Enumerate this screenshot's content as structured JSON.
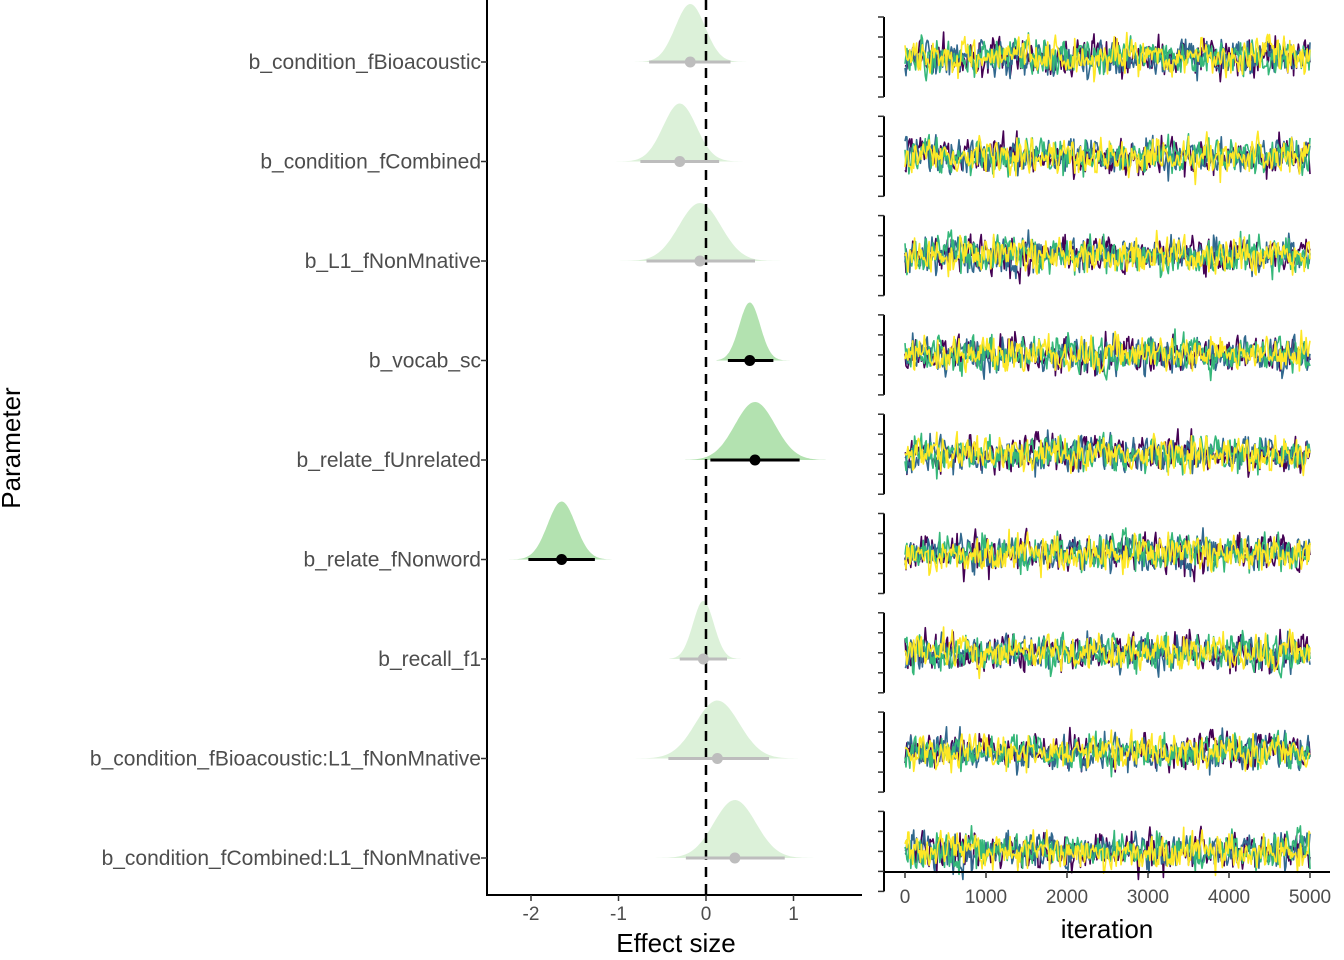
{
  "chart_data": [
    {
      "type": "interval",
      "title": "",
      "xlabel": "Effect size",
      "ylabel": "Parameter",
      "xlim": [
        -2.5,
        1.8
      ],
      "xticks": [
        -2,
        -1,
        0,
        1
      ],
      "xtick_labels": [
        "-2",
        "-1",
        "0",
        "1"
      ],
      "reference_line_x": 0,
      "grid": false,
      "colors": {
        "highlight_density": "#b3e2b0",
        "faded_density": "#dcf1d9",
        "highlight_point": "#000000",
        "faded_point": "#bdbdbd",
        "reference_line": "#000000"
      },
      "parameters": [
        {
          "name": "b_condition_fBioacoustic",
          "median": -0.18,
          "ci": [
            -0.65,
            0.28
          ],
          "dens_sd": 0.17,
          "dens_range": [
            -0.92,
            0.55
          ],
          "highlight": false
        },
        {
          "name": "b_condition_fCombined",
          "median": -0.3,
          "ci": [
            -0.75,
            0.15
          ],
          "dens_sd": 0.19,
          "dens_range": [
            -1.12,
            0.48
          ],
          "highlight": false
        },
        {
          "name": "b_L1_fNonMnative",
          "median": -0.07,
          "ci": [
            -0.68,
            0.56
          ],
          "dens_sd": 0.24,
          "dens_range": [
            -1.08,
            0.92
          ],
          "highlight": false
        },
        {
          "name": "b_vocab_sc",
          "median": 0.5,
          "ci": [
            0.25,
            0.77
          ],
          "dens_sd": 0.12,
          "dens_range": [
            0.12,
            0.96
          ],
          "highlight": true
        },
        {
          "name": "b_relate_fUnrelated",
          "median": 0.56,
          "ci": [
            0.05,
            1.07
          ],
          "dens_sd": 0.23,
          "dens_range": [
            -0.24,
            1.37
          ],
          "highlight": true
        },
        {
          "name": "b_relate_fNonword",
          "median": -1.65,
          "ci": [
            -2.03,
            -1.27
          ],
          "dens_sd": 0.16,
          "dens_range": [
            -2.27,
            -1.08
          ],
          "highlight": true
        },
        {
          "name": "b_recall_f1",
          "median": -0.03,
          "ci": [
            -0.3,
            0.24
          ],
          "dens_sd": 0.12,
          "dens_range": [
            -0.42,
            0.4
          ],
          "highlight": false
        },
        {
          "name": "b_condition_fBioacoustic:L1_fNonMnative",
          "median": 0.13,
          "ci": [
            -0.43,
            0.72
          ],
          "dens_sd": 0.25,
          "dens_range": [
            -0.81,
            1.05
          ],
          "highlight": false
        },
        {
          "name": "b_condition_fCombined:L1_fNonMnative",
          "median": 0.33,
          "ci": [
            -0.23,
            0.9
          ],
          "dens_sd": 0.24,
          "dens_range": [
            -0.65,
            1.42
          ],
          "highlight": false
        }
      ]
    },
    {
      "type": "line",
      "title": "",
      "xlabel": "iteration",
      "ylabel": "",
      "xlim": [
        0,
        5000
      ],
      "xticks": [
        0,
        1000,
        2000,
        3000,
        4000,
        5000
      ],
      "xtick_labels": [
        "0",
        "1000",
        "2000",
        "3000",
        "4000",
        "5000"
      ],
      "facets": 9,
      "chains": 4,
      "chain_colors": [
        "#440154",
        "#31688e",
        "#35b779",
        "#fde725"
      ],
      "grid": false,
      "series_description": "trace plots of 4 MCMC chains over 5000 iterations per parameter panel, well-mixed stationary noise"
    }
  ]
}
